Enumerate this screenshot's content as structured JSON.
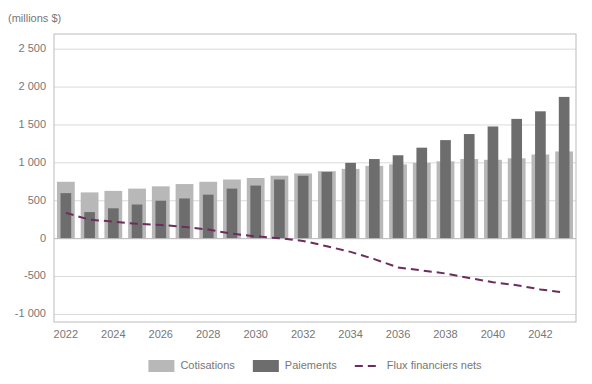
{
  "chart_data": {
    "type": "bar",
    "y_label": "(millions $)",
    "categories": [
      "2022",
      null,
      "2024",
      null,
      "2026",
      null,
      "2028",
      null,
      "2030",
      null,
      "2032",
      null,
      "2034",
      null,
      "2036",
      null,
      "2038",
      null,
      "2040",
      null,
      "2042",
      null
    ],
    "series": [
      {
        "name": "Cotisations",
        "type": "bar",
        "color": "#b8b8b8",
        "values": [
          750,
          610,
          630,
          660,
          690,
          720,
          750,
          780,
          800,
          830,
          860,
          890,
          920,
          960,
          980,
          1000,
          1020,
          1050,
          1040,
          1060,
          1110,
          1150
        ]
      },
      {
        "name": "Paiements",
        "type": "bar",
        "color": "#6d6d6d",
        "values": [
          600,
          350,
          400,
          450,
          500,
          530,
          580,
          660,
          700,
          780,
          830,
          880,
          1000,
          1050,
          1100,
          1200,
          1300,
          1380,
          1480,
          1580,
          1680,
          1870
        ]
      },
      {
        "name": "Flux financiers nets",
        "type": "line",
        "color": "#6b2d5e",
        "line_style": "dashed",
        "values": [
          340,
          250,
          225,
          195,
          180,
          155,
          120,
          65,
          30,
          5,
          -30,
          -100,
          -175,
          -270,
          -380,
          -420,
          -460,
          -520,
          -575,
          -615,
          -670,
          -710
        ]
      }
    ],
    "ylim": [
      -1100,
      2700
    ],
    "yticks": [
      {
        "value": -1000,
        "label": "-1 000"
      },
      -500,
      0,
      500,
      {
        "value": 1000,
        "label": "1 000"
      },
      {
        "value": 1500,
        "label": "1 500"
      },
      {
        "value": 2000,
        "label": "2 000"
      },
      {
        "value": 2500,
        "label": "2 500"
      }
    ],
    "grid": true,
    "legend": "bottom"
  }
}
